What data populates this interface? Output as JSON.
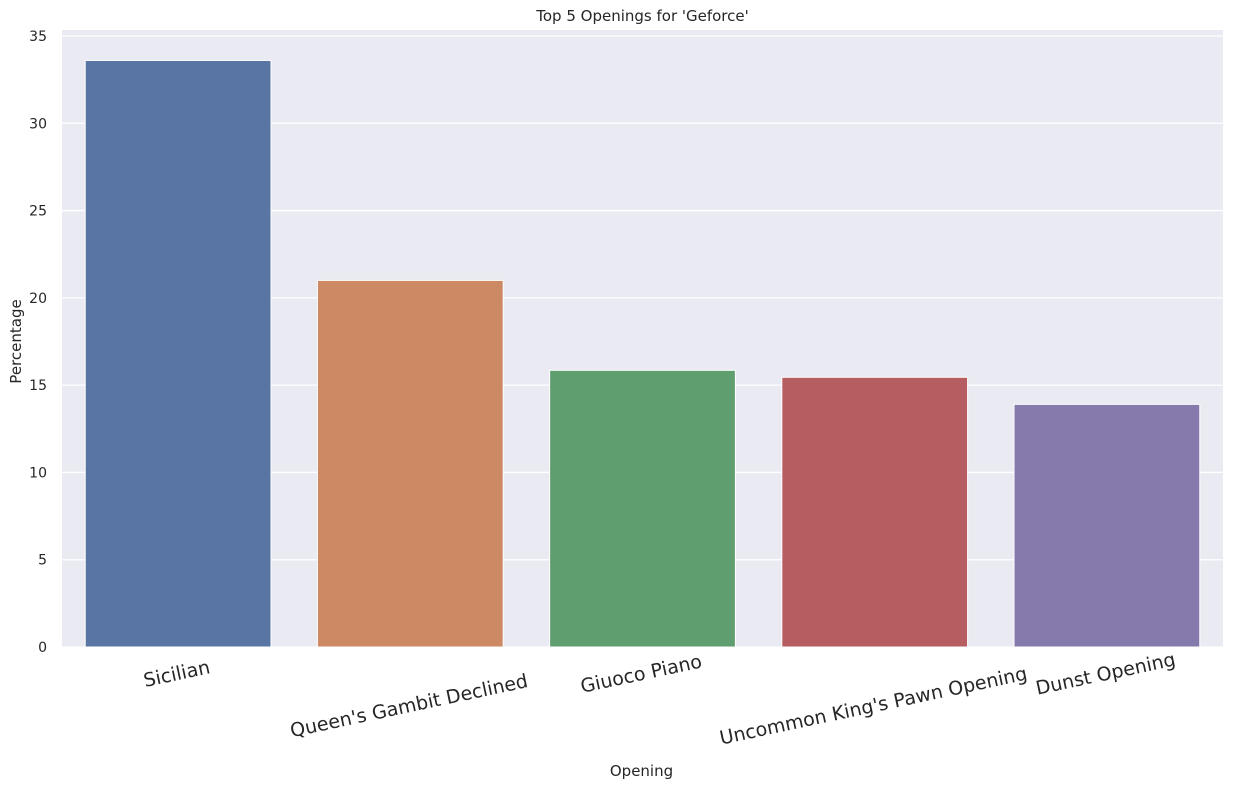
{
  "chart_data": {
    "type": "bar",
    "title": "Top 5 Openings for 'Geforce'",
    "xlabel": "Opening",
    "ylabel": "Percentage",
    "categories": [
      "Sicilian",
      "Queen's Gambit Declined",
      "Giuoco Piano",
      "Uncommon King's Pawn Opening",
      "Dunst Opening"
    ],
    "values": [
      33.6,
      21.0,
      15.85,
      15.45,
      13.9
    ],
    "colors": [
      "#5875a4",
      "#cc8963",
      "#5f9e6e",
      "#b55d60",
      "#857aab"
    ],
    "ylim": [
      0,
      35
    ],
    "yticks": [
      0,
      5,
      10,
      15,
      20,
      25,
      30,
      35
    ],
    "grid": true,
    "legend": "none",
    "background": "#eaeaf2"
  }
}
